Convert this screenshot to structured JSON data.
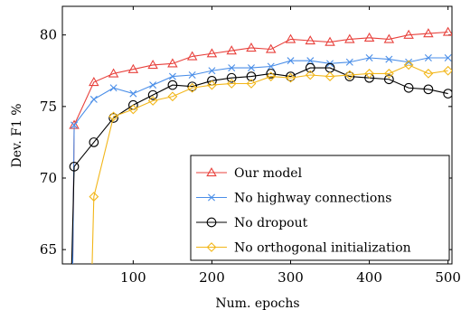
{
  "chart_data": {
    "type": "line",
    "title": "",
    "xlabel": "Num. epochs",
    "ylabel": "Dev. F1 %",
    "xlim": [
      10,
      505
    ],
    "ylim": [
      64,
      82
    ],
    "xticks": [
      100,
      200,
      300,
      400,
      500
    ],
    "yticks": [
      65,
      70,
      75,
      80
    ],
    "grid": false,
    "legend_position": "bottom-right",
    "series": [
      {
        "name": "Our model",
        "color": "#e8413c",
        "marker": "triangle",
        "x": [
          25,
          50,
          75,
          100,
          125,
          150,
          175,
          200,
          225,
          250,
          275,
          300,
          325,
          350,
          375,
          400,
          425,
          450,
          475,
          500
        ],
        "y": [
          73.7,
          76.7,
          77.3,
          77.6,
          77.9,
          78.0,
          78.5,
          78.7,
          78.9,
          79.1,
          79.0,
          79.7,
          79.6,
          79.5,
          79.7,
          79.8,
          79.7,
          80.0,
          80.1,
          80.2
        ]
      },
      {
        "name": "No highway connections",
        "color": "#4a8ee8",
        "marker": "x",
        "x": [
          25,
          50,
          75,
          100,
          125,
          150,
          175,
          200,
          225,
          250,
          275,
          300,
          325,
          350,
          375,
          400,
          425,
          450,
          475,
          500
        ],
        "y": [
          73.7,
          75.5,
          76.3,
          75.9,
          76.5,
          77.1,
          77.2,
          77.5,
          77.7,
          77.7,
          77.8,
          78.2,
          78.2,
          78.0,
          78.1,
          78.4,
          78.3,
          78.1,
          78.4,
          78.4
        ]
      },
      {
        "name": "No dropout",
        "color": "#000000",
        "marker": "circle",
        "x": [
          25,
          50,
          75,
          100,
          125,
          150,
          175,
          200,
          225,
          250,
          275,
          300,
          325,
          350,
          375,
          400,
          425,
          450,
          475,
          500
        ],
        "y": [
          70.8,
          72.5,
          74.2,
          75.1,
          75.8,
          76.5,
          76.4,
          76.8,
          77.0,
          77.1,
          77.3,
          77.1,
          77.7,
          77.7,
          77.1,
          77.0,
          76.9,
          76.3,
          76.2,
          75.9
        ]
      },
      {
        "name": "No orthogonal initialization",
        "color": "#f2b619",
        "marker": "diamond",
        "x": [
          50,
          75,
          100,
          125,
          150,
          175,
          200,
          225,
          250,
          275,
          300,
          325,
          350,
          375,
          400,
          425,
          450,
          475,
          500
        ],
        "y": [
          68.7,
          74.3,
          74.8,
          75.4,
          75.7,
          76.3,
          76.5,
          76.6,
          76.6,
          77.1,
          77.0,
          77.2,
          77.1,
          77.2,
          77.3,
          77.3,
          77.9,
          77.3,
          77.5
        ]
      }
    ],
    "offscreen_lines": [
      {
        "series": "No dropout",
        "from": [
          20,
          60
        ]
      },
      {
        "series": "No highway connections",
        "from": [
          23,
          63
        ]
      },
      {
        "series": "Our model",
        "from": [
          23,
          63
        ]
      },
      {
        "series": "No orthogonal initialization",
        "from": [
          46,
          60
        ]
      }
    ]
  }
}
